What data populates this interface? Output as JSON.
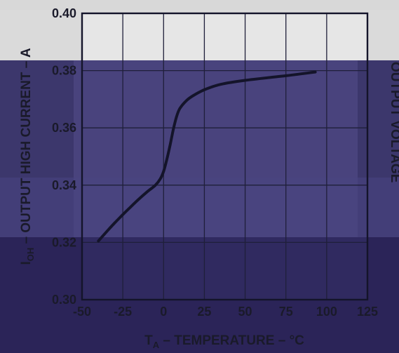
{
  "chart_data": {
    "type": "line",
    "title": "",
    "xlabel": "T_A – TEMPERATURE – °C",
    "xlabel_parts": {
      "main": "T",
      "sub": "A",
      "rest": " – TEMPERATURE – °C"
    },
    "ylabel": "I_OH – OUTPUT HIGH CURRENT – A",
    "ylabel_parts": {
      "main": "I",
      "sub": "OH",
      "rest": " – OUTPUT HIGH CURRENT – A"
    },
    "right_label_fragment": "OUTPUT VOLTAGE",
    "xlim": [
      -50,
      125
    ],
    "ylim": [
      0.3,
      0.4
    ],
    "xticks": [
      -50,
      -25,
      0,
      25,
      50,
      75,
      100,
      125
    ],
    "yticks": [
      0.3,
      0.32,
      0.34,
      0.36,
      0.38,
      0.4
    ],
    "xtick_labels": [
      "-50",
      "-25",
      "0",
      "25",
      "50",
      "75",
      "100",
      "125"
    ],
    "ytick_labels": [
      "0.30",
      "0.32",
      "0.34",
      "0.36",
      "0.38",
      "0.40"
    ],
    "grid": true,
    "series": [
      {
        "x": [
          -40,
          -35,
          -30,
          -25,
          -20,
          -15,
          -10,
          -5,
          -2,
          0,
          2,
          4,
          6,
          8,
          10,
          14,
          18,
          25,
          35,
          50,
          75,
          93
        ],
        "y": [
          0.3205,
          0.3237,
          0.3268,
          0.3297,
          0.3325,
          0.3352,
          0.3377,
          0.34,
          0.3422,
          0.3448,
          0.349,
          0.354,
          0.3595,
          0.364,
          0.3668,
          0.3695,
          0.3712,
          0.3733,
          0.3752,
          0.3766,
          0.3782,
          0.3795
        ]
      }
    ],
    "colors": {
      "line": "#14142a",
      "grid": "#1f1f3a"
    }
  }
}
